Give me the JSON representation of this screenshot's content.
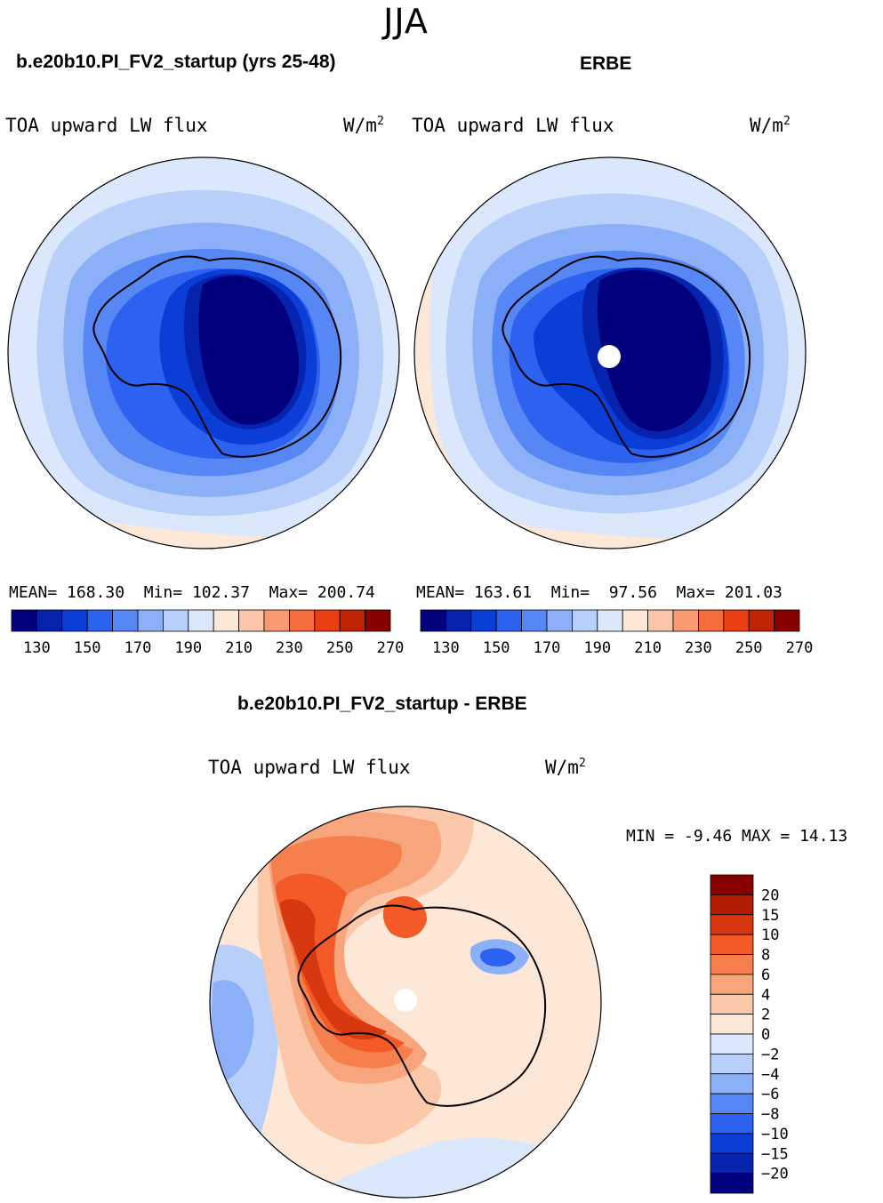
{
  "header": {
    "season": "JJA"
  },
  "panels": [
    {
      "case": "b.e20b10.PI_FV2_startup (yrs 25-48)",
      "variable": "TOA upward LW flux",
      "units_base": "W/m",
      "units_exp": "2",
      "mean_label": "MEAN=",
      "mean": "168.30",
      "min_label": "Min=",
      "min": "102.37",
      "max_label": "Max=",
      "max": "200.74",
      "missing_pole": false
    },
    {
      "case": "ERBE",
      "variable": "TOA upward LW flux",
      "units_base": "W/m",
      "units_exp": "2",
      "mean_label": "MEAN=",
      "mean": "163.61",
      "min_label": "Min=",
      "min": "97.56",
      "max_label": "Max=",
      "max": "201.03",
      "missing_pole": true
    }
  ],
  "diff": {
    "title": "b.e20b10.PI_FV2_startup - ERBE",
    "variable": "TOA upward LW flux",
    "units_base": "W/m",
    "units_exp": "2",
    "stats": "MIN =  -9.46 MAX =  14.13",
    "missing_pole": true
  },
  "chart_data": [
    {
      "type": "contour-map",
      "projection": "south-polar-stereographic",
      "title": "b.e20b10.PI_FV2_startup (yrs 25-48)",
      "variable": "TOA upward LW flux",
      "units": "W/m^2",
      "mean": 168.3,
      "min": 102.37,
      "max": 200.74,
      "colorbar": {
        "levels": [
          130,
          140,
          150,
          160,
          170,
          180,
          190,
          200,
          210,
          220,
          230,
          240,
          250,
          260,
          270
        ],
        "tick_labels": [
          "130",
          "150",
          "170",
          "190",
          "210",
          "230",
          "250",
          "270"
        ],
        "colors": [
          "#02007d",
          "#0623ad",
          "#0b3ed6",
          "#2d62f0",
          "#5787f4",
          "#8cb0f8",
          "#b7cff9",
          "#dbe8fb",
          "#fde8d8",
          "#fbc6a8",
          "#f89a72",
          "#f46c3c",
          "#ea3e14",
          "#c02403",
          "#880000"
        ]
      }
    },
    {
      "type": "contour-map",
      "projection": "south-polar-stereographic",
      "title": "ERBE",
      "variable": "TOA upward LW flux",
      "units": "W/m^2",
      "mean": 163.61,
      "min": 97.56,
      "max": 201.03,
      "colorbar": {
        "levels": [
          130,
          140,
          150,
          160,
          170,
          180,
          190,
          200,
          210,
          220,
          230,
          240,
          250,
          260,
          270
        ],
        "tick_labels": [
          "130",
          "150",
          "170",
          "190",
          "210",
          "230",
          "250",
          "270"
        ],
        "colors": [
          "#02007d",
          "#0623ad",
          "#0b3ed6",
          "#2d62f0",
          "#5787f4",
          "#8cb0f8",
          "#b7cff9",
          "#dbe8fb",
          "#fde8d8",
          "#fbc6a8",
          "#f89a72",
          "#f46c3c",
          "#ea3e14",
          "#c02403",
          "#880000"
        ]
      }
    },
    {
      "type": "contour-map",
      "projection": "south-polar-stereographic",
      "title": "b.e20b10.PI_FV2_startup - ERBE",
      "variable": "TOA upward LW flux",
      "units": "W/m^2",
      "min": -9.46,
      "max": 14.13,
      "colorbar": {
        "levels": [
          20,
          15,
          10,
          8,
          6,
          4,
          2,
          0,
          -2,
          -4,
          -6,
          -8,
          -10,
          -15,
          -20
        ],
        "tick_labels": [
          "20",
          "15",
          "10",
          "8",
          "6",
          "4",
          "2",
          "0",
          "−2",
          "−4",
          "−6",
          "−8",
          "−10",
          "−15",
          "−20"
        ],
        "colors": [
          "#880000",
          "#b21d03",
          "#d83810",
          "#f45a28",
          "#f5804e",
          "#f8a47c",
          "#fbc8a9",
          "#fde8d8",
          "#dbe8fb",
          "#b7cff9",
          "#8cb0f8",
          "#5787f4",
          "#2d62f0",
          "#0b3ed6",
          "#0623ad",
          "#02007d"
        ]
      }
    }
  ]
}
